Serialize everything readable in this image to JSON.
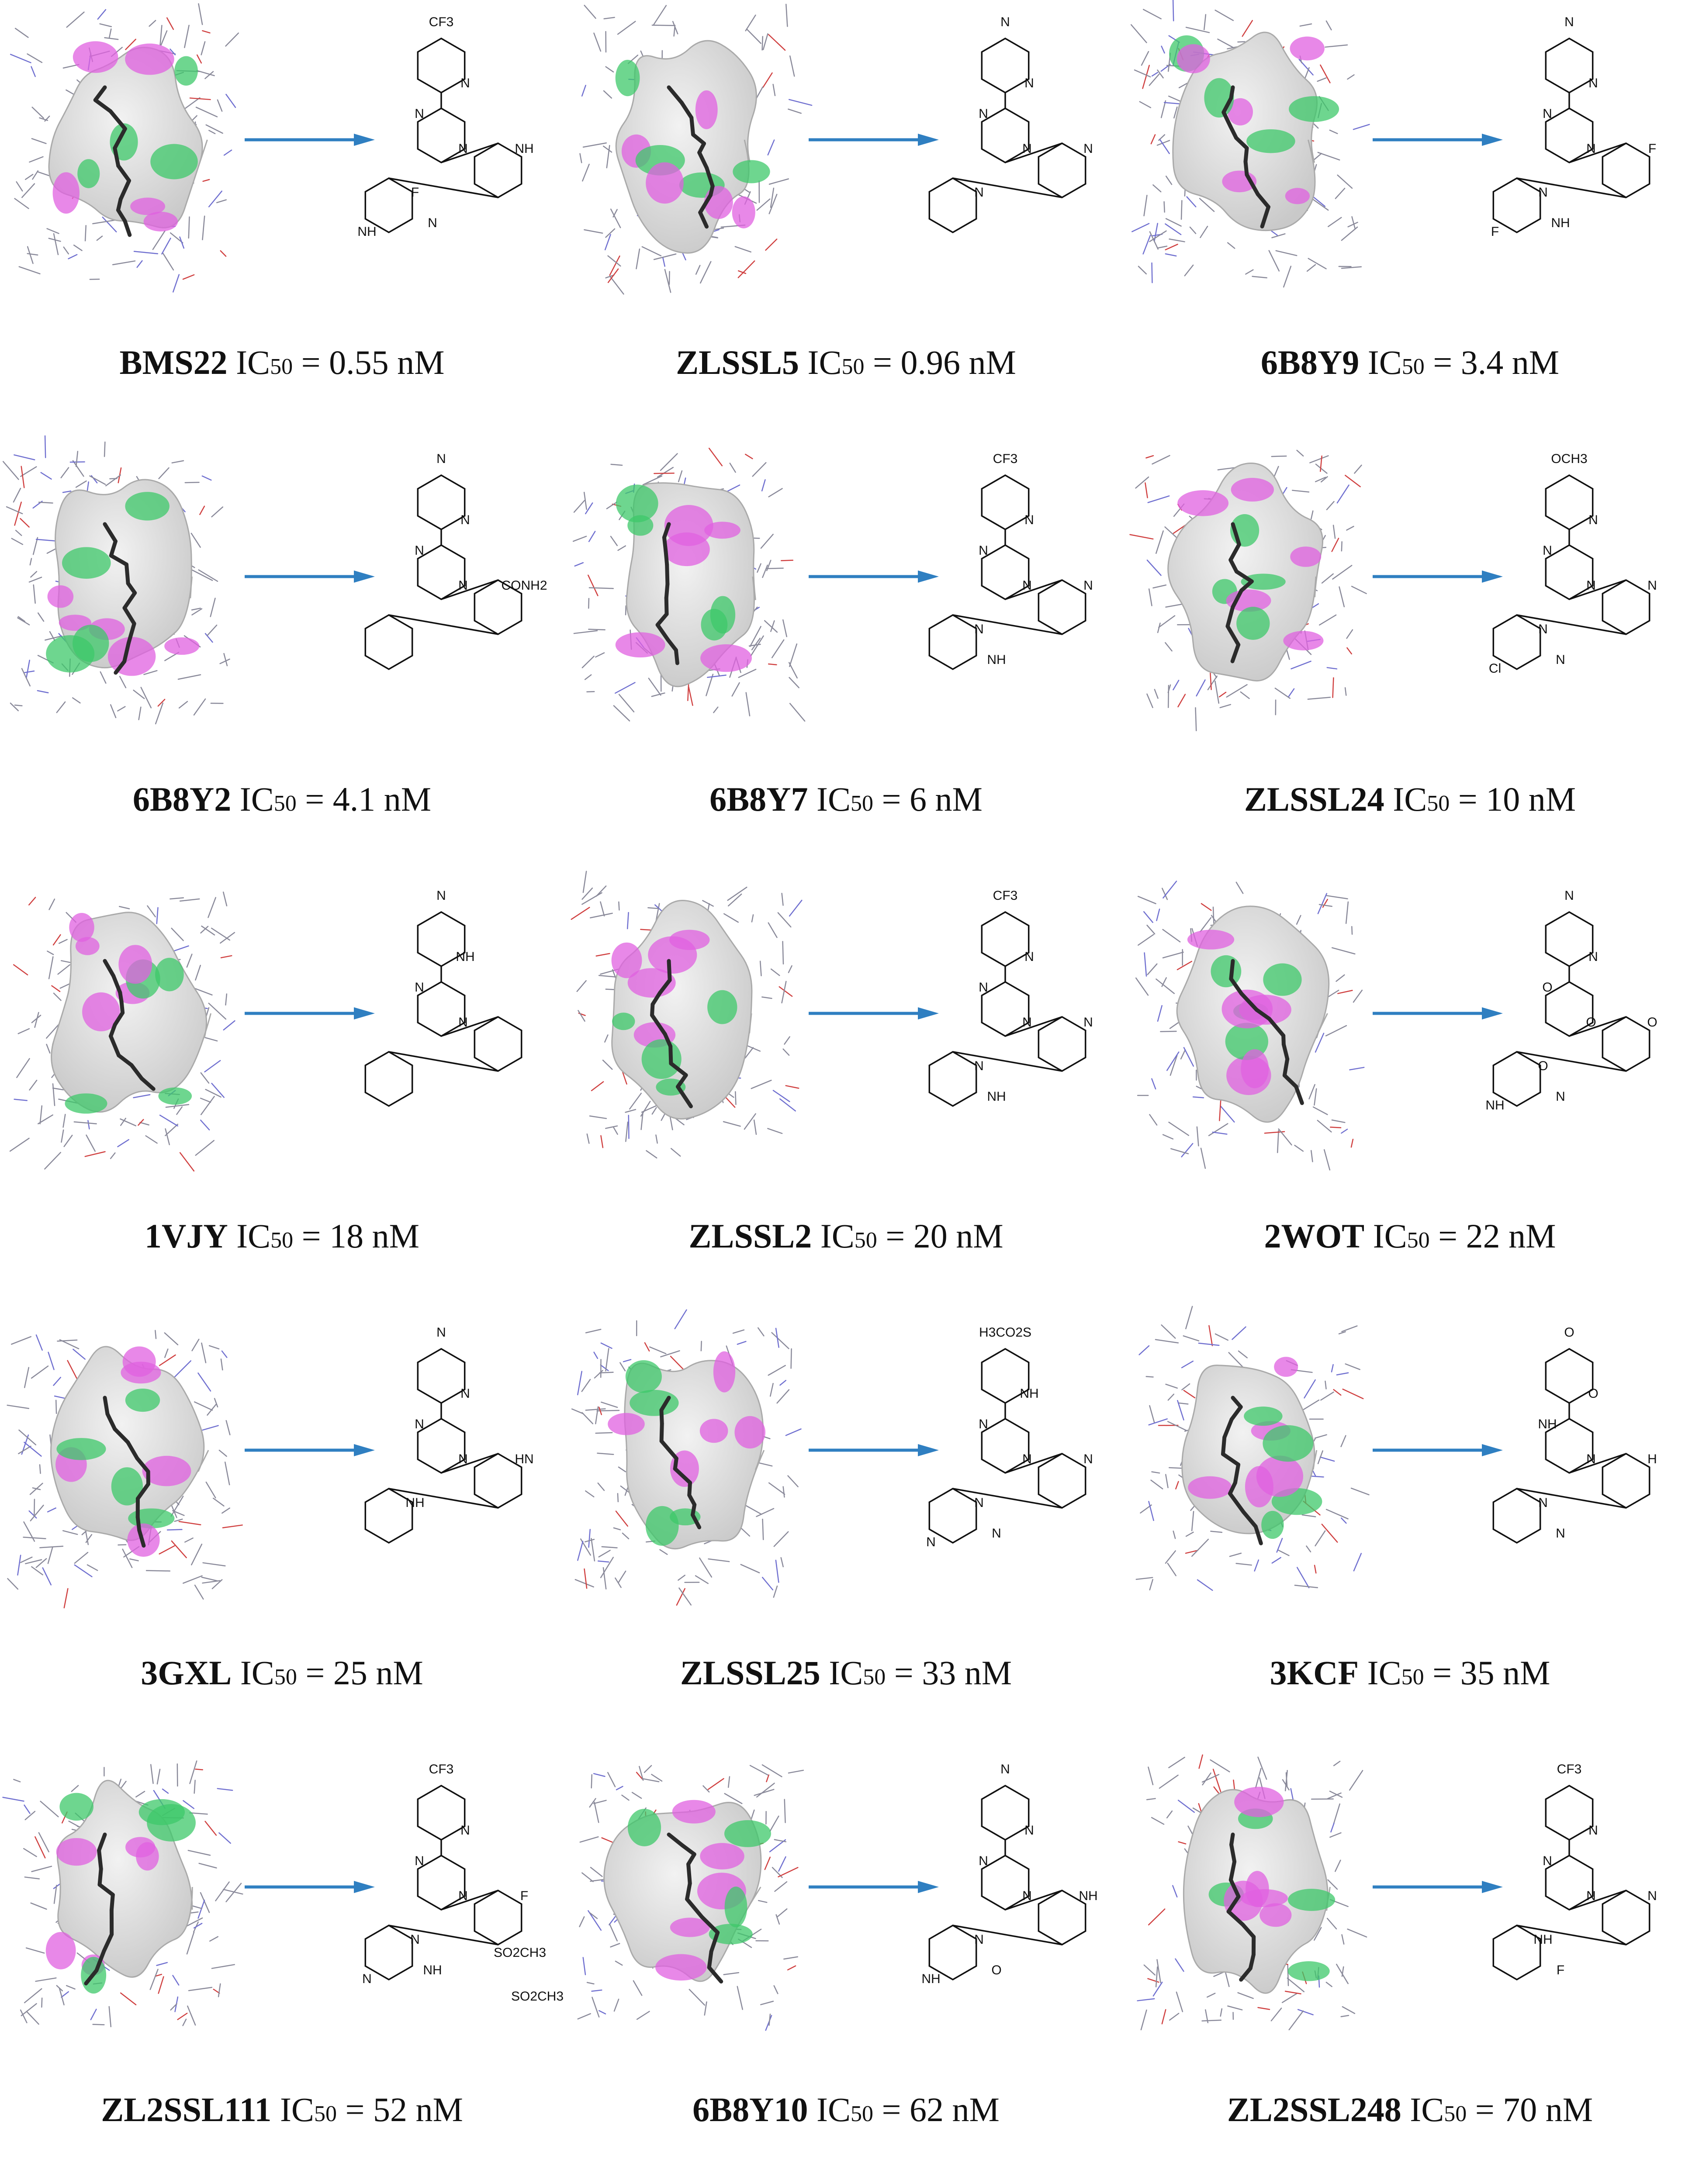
{
  "figure": {
    "ic_prefix": "IC",
    "ic_sub": "50",
    "equals": " = ",
    "compounds": [
      {
        "name": "BMS22",
        "value": "0.55 nM",
        "structure_labels": [
          "CF3",
          "N",
          "N",
          "N",
          "NH",
          "F",
          "N",
          "NH"
        ]
      },
      {
        "name": "ZLSSL5",
        "value": "0.96 nM",
        "structure_labels": [
          "N",
          "N",
          "N",
          "N",
          "N",
          "N"
        ]
      },
      {
        "name": "6B8Y9",
        "value": "3.4 nM",
        "structure_labels": [
          "N",
          "N",
          "N",
          "N",
          "F",
          "N",
          "NH",
          "F"
        ]
      },
      {
        "name": "6B8Y2",
        "value": "4.1 nM",
        "structure_labels": [
          "N",
          "N",
          "N",
          "N",
          "CONH2"
        ]
      },
      {
        "name": "6B8Y7",
        "value": "6 nM",
        "structure_labels": [
          "CF3",
          "N",
          "N",
          "N",
          "N",
          "N",
          "NH"
        ]
      },
      {
        "name": "ZLSSL24",
        "value": "10 nM",
        "structure_labels": [
          "OCH3",
          "N",
          "N",
          "N",
          "N",
          "N",
          "N",
          "Cl"
        ]
      },
      {
        "name": "1VJY",
        "value": "18 nM",
        "structure_labels": [
          "N",
          "NH",
          "N",
          "N"
        ]
      },
      {
        "name": "ZLSSL2",
        "value": "20 nM",
        "structure_labels": [
          "CF3",
          "N",
          "N",
          "N",
          "N",
          "N",
          "NH"
        ]
      },
      {
        "name": "2WOT",
        "value": "22 nM",
        "structure_labels": [
          "N",
          "N",
          "O",
          "O",
          "O",
          "O",
          "N",
          "NH"
        ]
      },
      {
        "name": "3GXL",
        "value": "25 nM",
        "structure_labels": [
          "N",
          "N",
          "N",
          "N",
          "HN",
          "NH"
        ]
      },
      {
        "name": "ZLSSL25",
        "value": "33 nM",
        "structure_labels": [
          "H3CO2S",
          "NH",
          "N",
          "N",
          "N",
          "N",
          "N",
          "N"
        ]
      },
      {
        "name": "3KCF",
        "value": "35 nM",
        "structure_labels": [
          "O",
          "O",
          "NH",
          "N",
          "H",
          "N",
          "N"
        ]
      },
      {
        "name": "ZL2SSL111",
        "value": "52 nM",
        "structure_labels": [
          "CF3",
          "N",
          "N",
          "N",
          "F",
          "N",
          "NH",
          "N",
          "SO2CH3",
          "SO2CH3"
        ]
      },
      {
        "name": "6B8Y10",
        "value": "62 nM",
        "structure_labels": [
          "N",
          "N",
          "N",
          "N",
          "NH",
          "N",
          "O",
          "NH"
        ]
      },
      {
        "name": "ZL2SSL248",
        "value": "70 nM",
        "structure_labels": [
          "CF3",
          "N",
          "N",
          "N",
          "N",
          "NH",
          "F"
        ]
      }
    ]
  },
  "colors": {
    "arrow": "#2f7fc1",
    "surface": "#c9c9c9",
    "donor": "#e060e0",
    "acceptor": "#3ec86a",
    "residue_lines": "#8a8a9a",
    "ligand": "#2b2b2b",
    "bond": "#111111"
  },
  "icons": {
    "arrow": "blue-right-arrow",
    "pocket": "binding-pocket-surface",
    "structure": "chemical-structure"
  }
}
